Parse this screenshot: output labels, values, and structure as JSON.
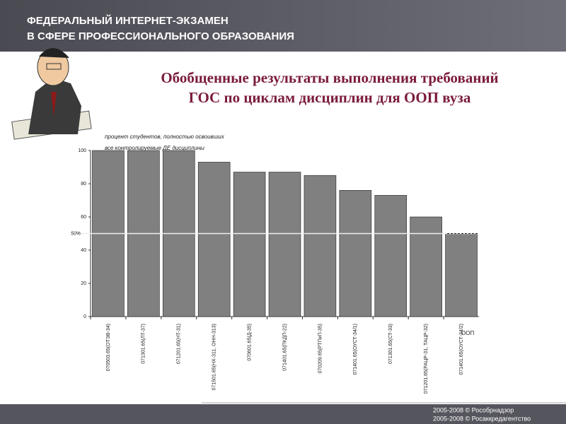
{
  "header": {
    "lines": [
      "ФЕДЕРАЛЬНЫЙ ИНТЕРНЕТ-ЭКЗАМЕН",
      "В СФЕРЕ ПРОФЕССИОНАЛЬНОГО ОБРАЗОВАНИЯ"
    ]
  },
  "footer": {
    "lines": [
      "2005-2008 © Рособрнадзор",
      "2005-2008 © Росаккредагентство"
    ]
  },
  "chart_data": {
    "type": "bar",
    "title": [
      "Обобщенные результаты выполнения требований",
      "ГОС по циклам дисциплин для ООП вуза"
    ],
    "y_label": [
      "процент студентов, полностью освоивших",
      "все контролируемые ДЕ дисциплины"
    ],
    "x_label": "ООП",
    "categories": [
      "070503.65(ОТЭВ-34)",
      "071301.65(ЛТ-37)",
      "071201.65(НТ-31)",
      "071501.65(НХ-311, ОНН-313)",
      "070601.65(Д-35)",
      "071401.65(ПКДП-22)",
      "070209.65(РТПиП-35)",
      "071401.65(ОУСТ-34/1)",
      "071301.65(СТ-33)",
      "071201.65(РАЦР-31, ТАЦР-32)",
      "071401.65(ОУСТ-34/2)"
    ],
    "values": [
      100,
      100,
      100,
      93,
      87,
      87,
      85,
      76,
      73,
      60,
      50
    ],
    "color": "#808080",
    "threshold": {
      "value": 50,
      "label": "50%"
    },
    "ylim": [
      0,
      100
    ],
    "yticks": [
      0,
      20,
      40,
      60,
      80,
      100
    ]
  }
}
